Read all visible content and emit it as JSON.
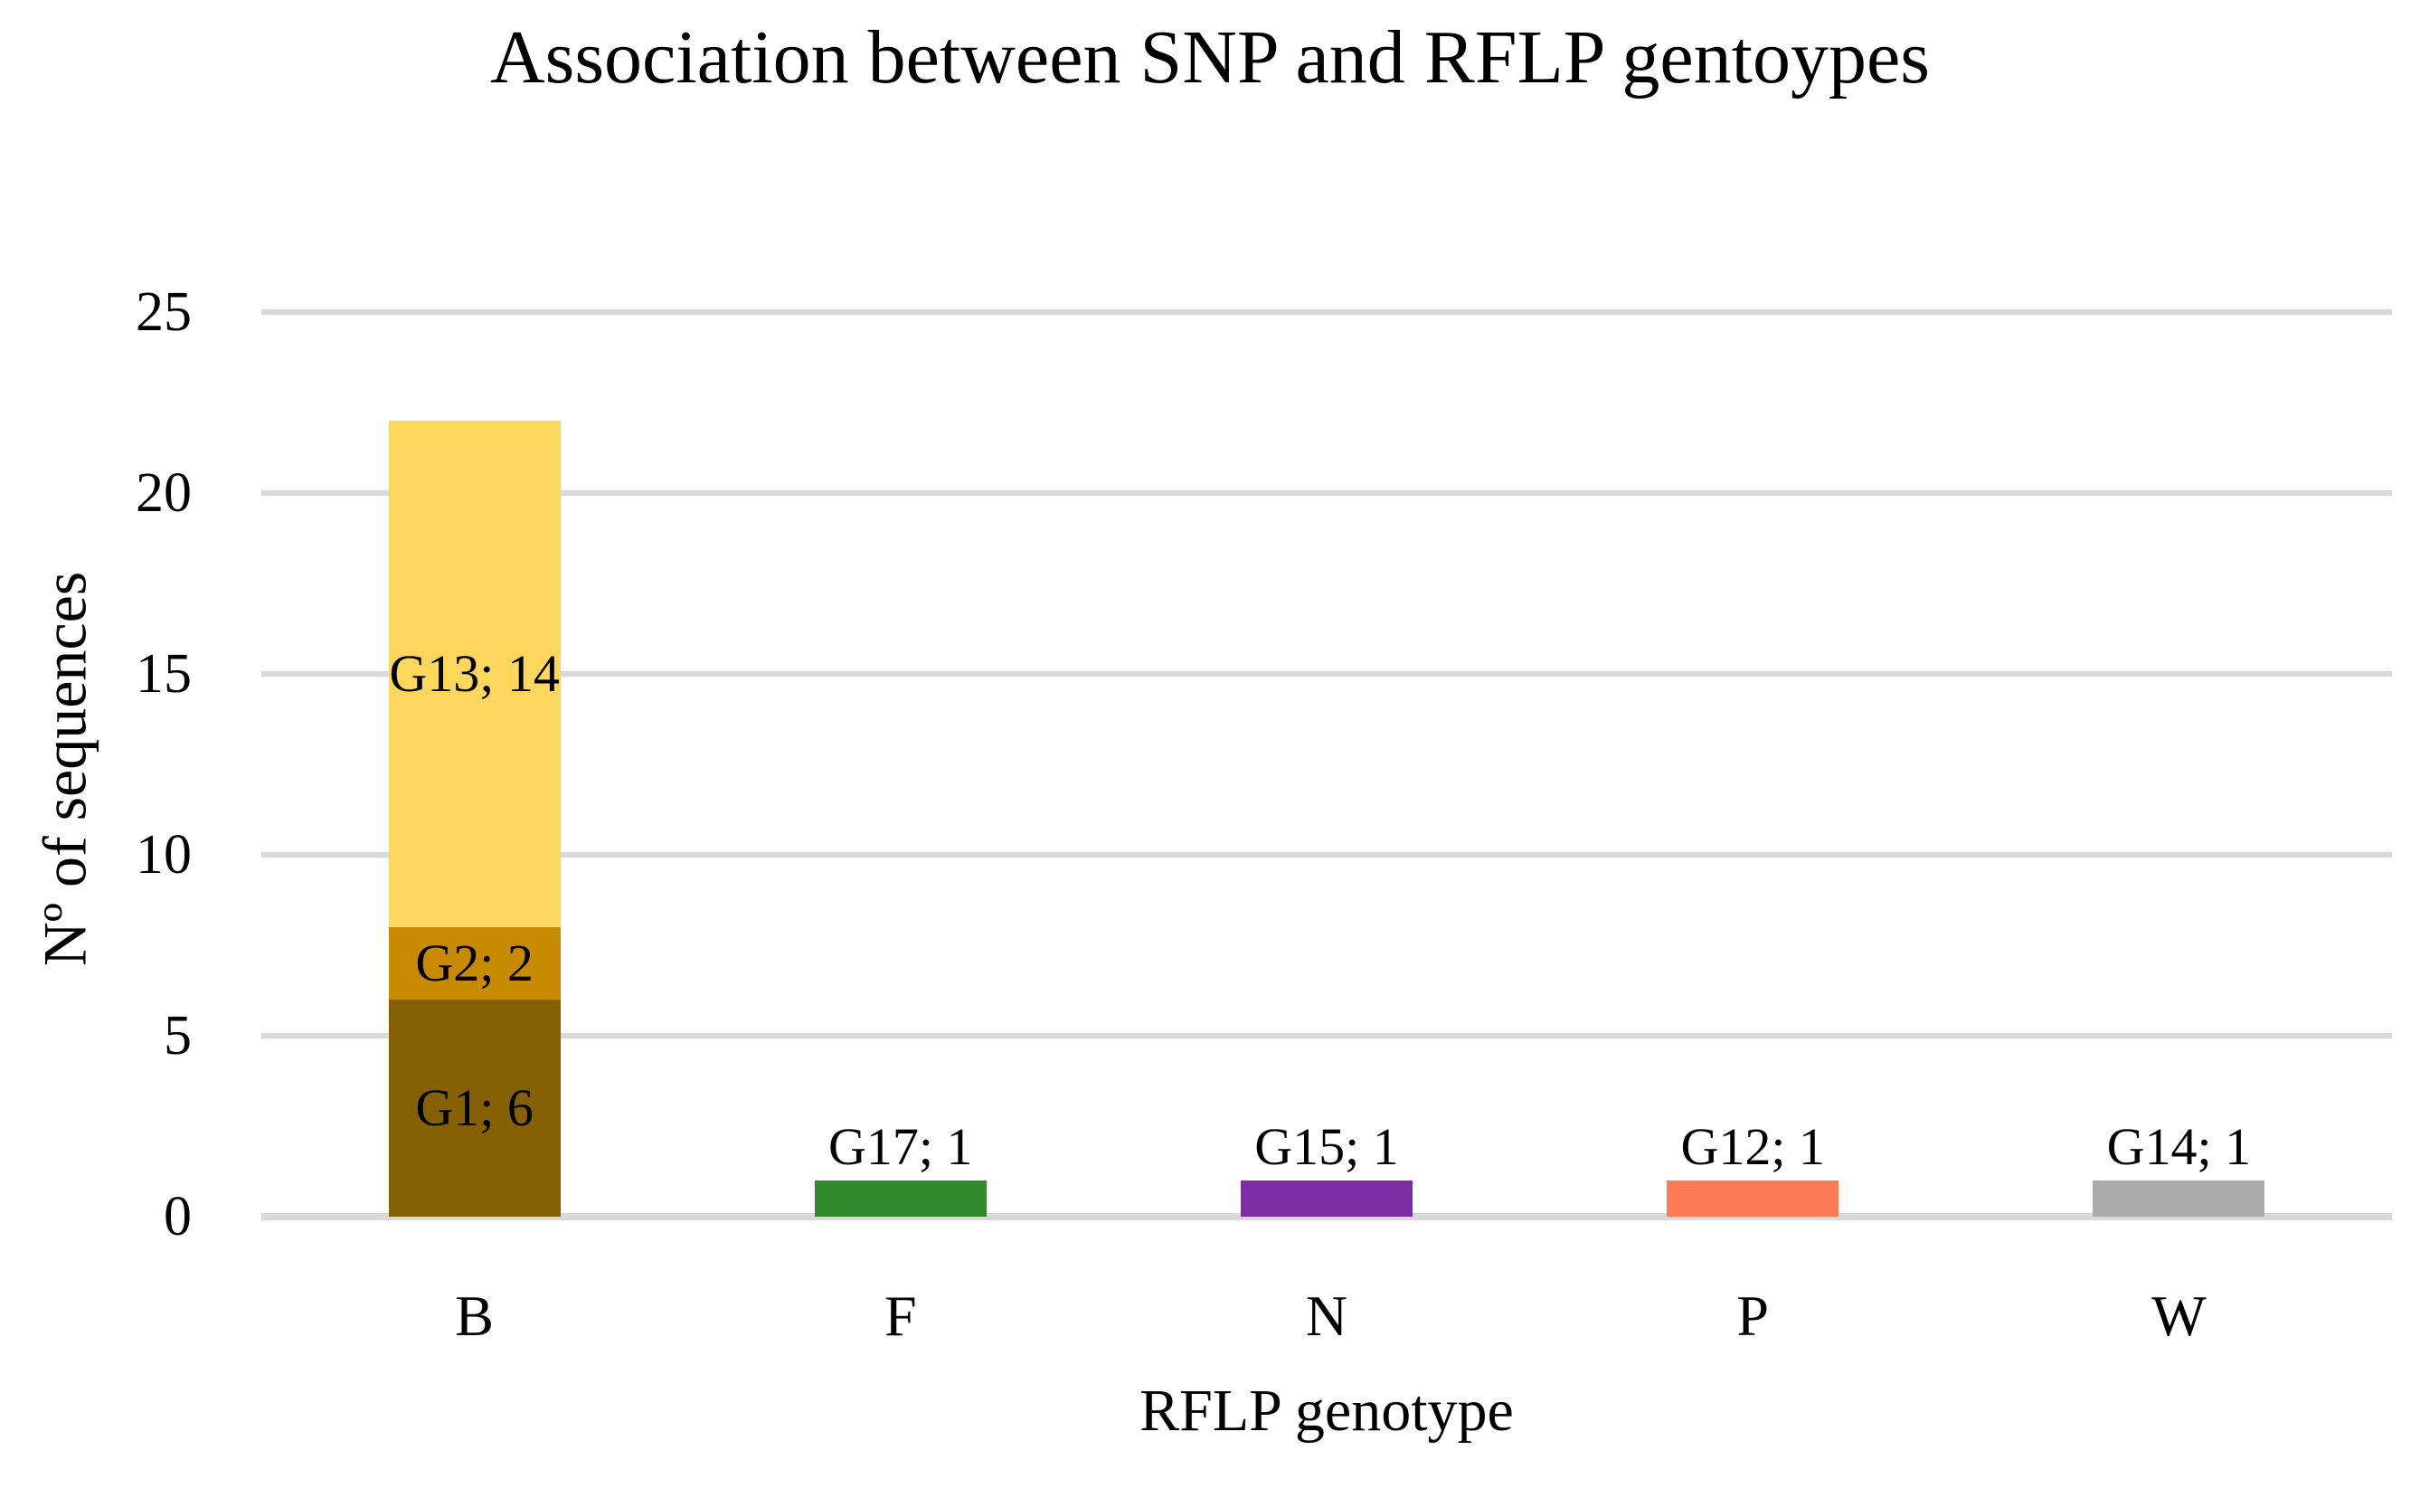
{
  "title": "Association between SNP and RFLP gentoypes",
  "chart_data": {
    "type": "bar",
    "stacked": true,
    "title": "Association between SNP and RFLP gentoypes",
    "xlabel": "RFLP genotype",
    "ylabel": "Nº of sequences",
    "categories": [
      "B",
      "F",
      "N",
      "P",
      "W"
    ],
    "yticks": [
      0,
      5,
      10,
      15,
      20,
      25
    ],
    "ylim": [
      0,
      25
    ],
    "grid": true,
    "gridline_color": "#D9D9D9",
    "axis_line_color": "#D9D9D9",
    "legend": "none",
    "background_color": "#ffffff",
    "bars": [
      {
        "category": "B",
        "total": 22,
        "segments": [
          {
            "name": "G1",
            "value": 6,
            "label": "G1; 6",
            "color": "#866103",
            "label_pos": "inside"
          },
          {
            "name": "G2",
            "value": 2,
            "label": "G2; 2",
            "color": "#C88A00",
            "label_pos": "inside"
          },
          {
            "name": "G13",
            "value": 14,
            "label": "G13; 14",
            "color": "#FDD65C",
            "label_pos": "inside"
          }
        ]
      },
      {
        "category": "F",
        "total": 1,
        "segments": [
          {
            "name": "G17",
            "value": 1,
            "label": "G17; 1",
            "color": "#338A2D",
            "label_pos": "above"
          }
        ]
      },
      {
        "category": "N",
        "total": 1,
        "segments": [
          {
            "name": "G15",
            "value": 1,
            "label": "G15; 1",
            "color": "#7C2FA5",
            "label_pos": "above"
          }
        ]
      },
      {
        "category": "P",
        "total": 1,
        "segments": [
          {
            "name": "G12",
            "value": 1,
            "label": "G12; 1",
            "color": "#FC7B57",
            "label_pos": "above"
          }
        ]
      },
      {
        "category": "W",
        "total": 1,
        "segments": [
          {
            "name": "G14",
            "value": 1,
            "label": "G14; 1",
            "color": "#ABABAB",
            "label_pos": "above"
          }
        ]
      }
    ]
  }
}
